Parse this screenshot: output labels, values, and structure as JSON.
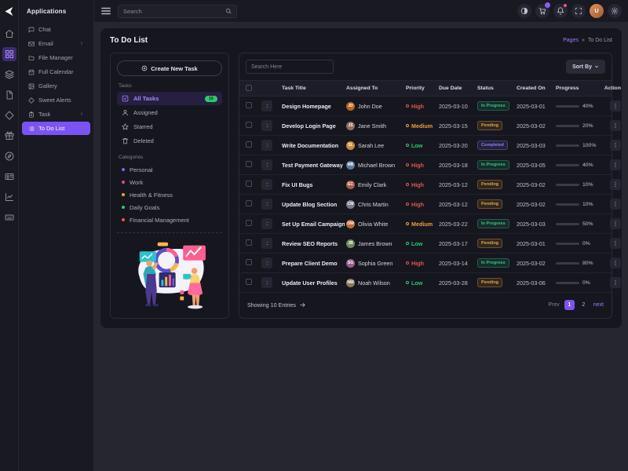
{
  "accent_color": "#7c52f4",
  "rail": {
    "icons": [
      {
        "name": "home"
      },
      {
        "name": "grid",
        "active": true
      },
      {
        "name": "layers"
      },
      {
        "name": "file"
      },
      {
        "name": "diamond"
      },
      {
        "name": "gift"
      },
      {
        "name": "compass"
      },
      {
        "name": "id-card"
      },
      {
        "name": "chart"
      },
      {
        "name": "keyboard"
      }
    ]
  },
  "sidebar": {
    "header": "Applications",
    "items": [
      {
        "label": "Chat",
        "icon": "chat"
      },
      {
        "label": "Email",
        "icon": "mail",
        "has_children": true
      },
      {
        "label": "File Manager",
        "icon": "folder"
      },
      {
        "label": "Full Calendar",
        "icon": "calendar"
      },
      {
        "label": "Gallery",
        "icon": "image"
      },
      {
        "label": "Sweet Alerts",
        "icon": "diamond"
      },
      {
        "label": "Task",
        "icon": "clipboard",
        "has_children": true
      },
      {
        "label": "To Do List",
        "icon": "list",
        "active": true
      }
    ]
  },
  "topbar": {
    "search_placeholder": "Search",
    "buttons": [
      {
        "name": "theme-toggle",
        "icon": "contrast"
      },
      {
        "name": "cart",
        "icon": "cart",
        "badge": "purple"
      },
      {
        "name": "notifications",
        "icon": "bell",
        "badge": "pink"
      },
      {
        "name": "fullscreen",
        "icon": "maximize"
      },
      {
        "name": "profile",
        "icon": "avatar",
        "initials": "U"
      },
      {
        "name": "settings",
        "icon": "gear"
      }
    ]
  },
  "page": {
    "title": "To Do List",
    "breadcrumb": {
      "section": "Pages",
      "separator": "»",
      "current": "To Do List"
    }
  },
  "task_panel": {
    "create_button": "Create New Task",
    "tasks_label": "Tasks",
    "filters": [
      {
        "label": "All Tasks",
        "icon": "check-square",
        "active": true,
        "badge": "16"
      },
      {
        "label": "Assigned",
        "icon": "user"
      },
      {
        "label": "Starred",
        "icon": "star"
      },
      {
        "label": "Deleted",
        "icon": "trash"
      }
    ],
    "categories_label": "Categories",
    "categories": [
      {
        "label": "Personal",
        "color": "#8b5cf6"
      },
      {
        "label": "Work",
        "color": "#e84393"
      },
      {
        "label": "Health & Fitness",
        "color": "#e9a23b"
      },
      {
        "label": "Daily Goals",
        "color": "#2fc870"
      },
      {
        "label": "Financial Management",
        "color": "#f0564a"
      }
    ]
  },
  "table": {
    "search_placeholder": "Search Here",
    "sort_button": "Sort By",
    "headers": [
      "Task Title",
      "Assigned To",
      "Priority",
      "Due Date",
      "Status",
      "Created On",
      "Progress",
      "Action"
    ],
    "priority_colors": {
      "High": "#e0564f",
      "Medium": "#e9a23b",
      "Low": "#2fc870"
    },
    "status_colors": {
      "In Progress": "#2fc980",
      "Pending": "#e9a23b",
      "Completed": "#8f7df5"
    },
    "rows": [
      {
        "title": "Design Homepage",
        "assignee": "John Doe",
        "avatar_color": "#b5651d",
        "priority": "High",
        "due_date": "2025-03-10",
        "status": "In Progress",
        "created_on": "2025-03-01",
        "progress": 40
      },
      {
        "title": "Develop Login Page",
        "assignee": "Jane Smith",
        "avatar_color": "#8d6e63",
        "priority": "Medium",
        "due_date": "2025-03-15",
        "status": "Pending",
        "created_on": "2025-03-02",
        "progress": 20
      },
      {
        "title": "Write Documentation",
        "assignee": "Sarah Lee",
        "avatar_color": "#c98a3d",
        "priority": "Low",
        "due_date": "2025-03-20",
        "status": "Completed",
        "created_on": "2025-03-03",
        "progress": 100
      },
      {
        "title": "Test Payment Gateway",
        "assignee": "Michael Brown",
        "avatar_color": "#5d7a9a",
        "priority": "High",
        "due_date": "2025-03-18",
        "status": "In Progress",
        "created_on": "2025-03-05",
        "progress": 40
      },
      {
        "title": "Fix UI Bugs",
        "assignee": "Emily Clark",
        "avatar_color": "#a85d4a",
        "priority": "High",
        "due_date": "2025-03-12",
        "status": "Pending",
        "created_on": "2025-03-02",
        "progress": 10
      },
      {
        "title": "Update Blog Section",
        "assignee": "Chris Martin",
        "avatar_color": "#7a7a8c",
        "priority": "High",
        "due_date": "2025-03-12",
        "status": "Pending",
        "created_on": "2025-03-02",
        "progress": 10
      },
      {
        "title": "Set Up Email Campaign",
        "assignee": "Olivia White",
        "avatar_color": "#c06c3a",
        "priority": "Medium",
        "due_date": "2025-03-22",
        "status": "In Progress",
        "created_on": "2025-03-03",
        "progress": 50
      },
      {
        "title": "Review SEO Reports",
        "assignee": "James Brown",
        "avatar_color": "#6d8a5d",
        "priority": "Low",
        "due_date": "2025-03-17",
        "status": "Pending",
        "created_on": "2025-03-01",
        "progress": 0
      },
      {
        "title": "Prepare Client Demo",
        "assignee": "Sophia Green",
        "avatar_color": "#9a5d8a",
        "priority": "High",
        "due_date": "2025-03-14",
        "status": "In Progress",
        "created_on": "2025-03-02",
        "progress": 80
      },
      {
        "title": "Update User Profiles",
        "assignee": "Noah Wilson",
        "avatar_color": "#8a7a5d",
        "priority": "Low",
        "due_date": "2025-03-28",
        "status": "Pending",
        "created_on": "2025-03-06",
        "progress": 0
      }
    ]
  },
  "footer": {
    "showing_text": "Showing 10 Entries",
    "pagination": {
      "prev_label": "Prev",
      "pages": [
        "1",
        "2"
      ],
      "active_page": "1",
      "next_label": "next"
    }
  }
}
